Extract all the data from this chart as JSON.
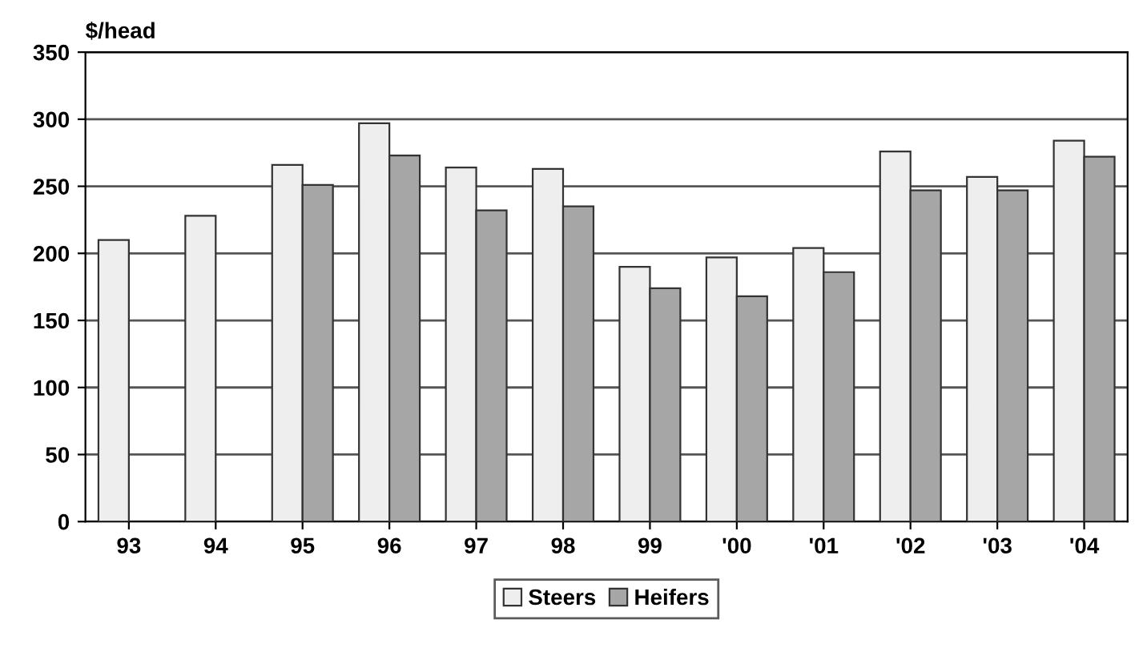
{
  "chart_data": {
    "type": "bar",
    "ylabel": "$/head",
    "categories": [
      "93",
      "94",
      "95",
      "96",
      "97",
      "98",
      "99",
      "'00",
      "'01",
      "'02",
      "'03",
      "'04"
    ],
    "series": [
      {
        "name": "Steers",
        "color": "#eeeeee",
        "values": [
          210,
          228,
          266,
          297,
          264,
          263,
          190,
          197,
          204,
          276,
          257,
          284
        ]
      },
      {
        "name": "Heifers",
        "color": "#a6a6a6",
        "values": [
          null,
          null,
          251,
          273,
          232,
          235,
          174,
          168,
          186,
          247,
          247,
          272
        ]
      }
    ],
    "ylim": [
      0,
      350
    ],
    "yticks": [
      0,
      50,
      100,
      150,
      200,
      250,
      300,
      350
    ],
    "grid": "y",
    "legend": "bottom"
  }
}
